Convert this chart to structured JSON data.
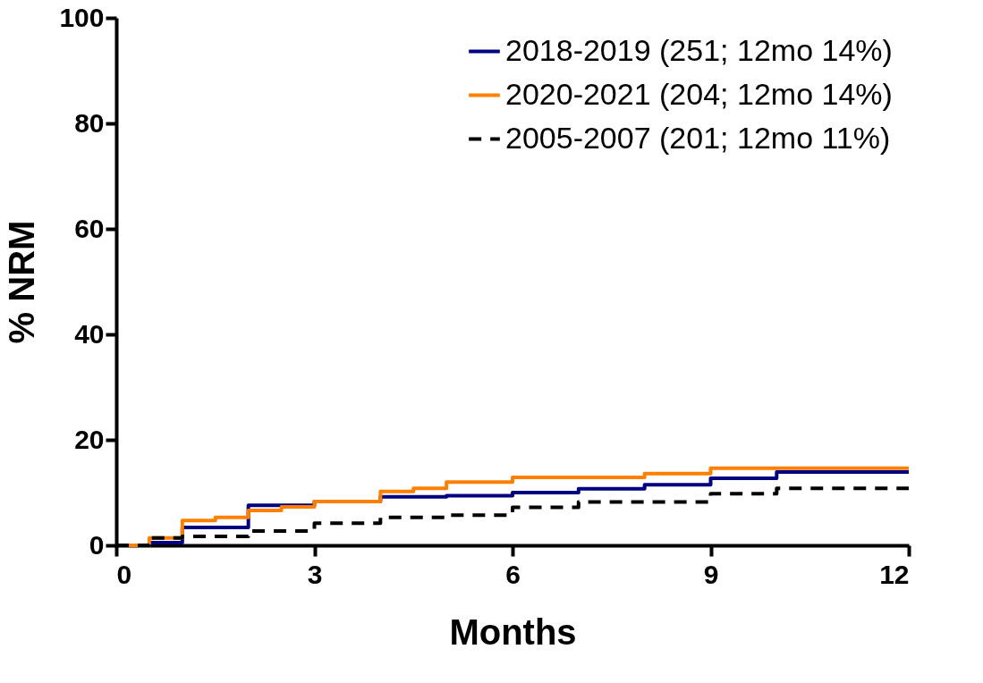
{
  "chart_data": {
    "type": "step",
    "xlabel": "Months",
    "ylabel": "% NRM",
    "xlim": [
      0,
      12
    ],
    "xticks": [
      0,
      3,
      6,
      9,
      12
    ],
    "ylim": [
      0,
      100
    ],
    "yticks": [
      0,
      20,
      40,
      60,
      80,
      100
    ],
    "grid": false,
    "legend": "top right",
    "marker": "none",
    "series": [
      {
        "name": "2018-2019 (251; 12mo 14%)",
        "color": "#000080",
        "line_style": "solid",
        "x": [
          0,
          0.5,
          1,
          2,
          3,
          4,
          5,
          6,
          7,
          8,
          9,
          10,
          12
        ],
        "values": [
          0,
          0.5,
          3.4,
          7.6,
          8.3,
          9.2,
          9.4,
          10.0,
          10.7,
          11.5,
          12.7,
          13.9,
          13.9
        ]
      },
      {
        "name": "2020-2021 (204; 12mo 14%)",
        "color": "#ff8000",
        "line_style": "solid",
        "x": [
          0,
          0.5,
          1,
          1.5,
          2,
          2.5,
          3,
          4,
          4.5,
          5,
          6,
          8,
          9,
          12
        ],
        "values": [
          0,
          1.4,
          4.7,
          5.3,
          6.6,
          7.3,
          8.3,
          10.2,
          10.8,
          12.0,
          12.9,
          13.6,
          14.6,
          14.6
        ]
      },
      {
        "name": "2005-2007 (201; 12mo 11%)",
        "color": "#000000",
        "line_style": "dashed",
        "x": [
          0,
          0.5,
          1,
          2,
          3,
          4,
          5,
          6,
          7,
          9,
          10,
          12
        ],
        "values": [
          0,
          1.4,
          1.7,
          2.7,
          4.2,
          5.3,
          5.7,
          7.2,
          8.2,
          9.8,
          10.8,
          10.8
        ]
      }
    ]
  }
}
